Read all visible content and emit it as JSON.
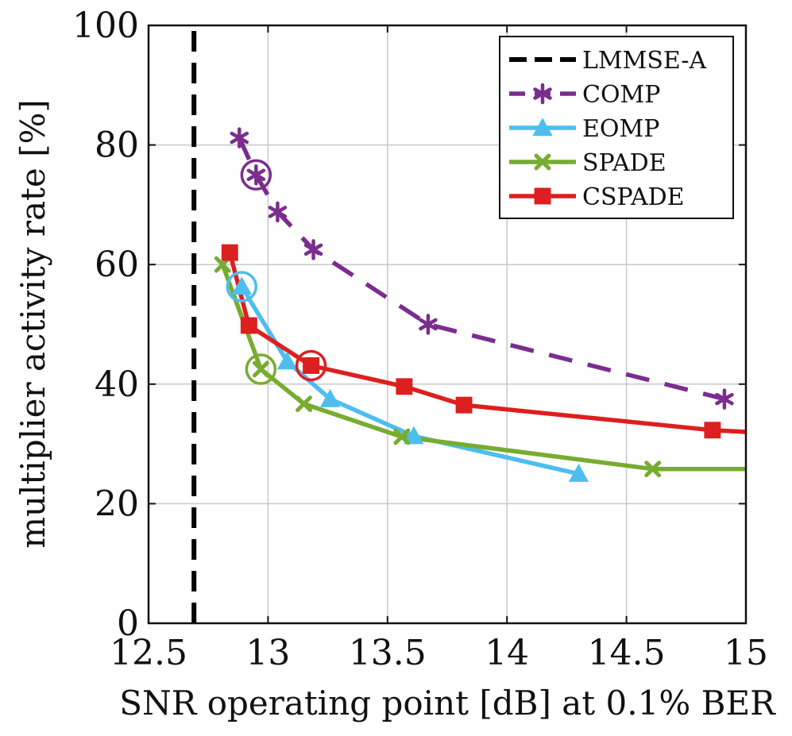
{
  "chart_data": {
    "type": "line",
    "xlabel": "SNR operating point [dB] at 0.1% BER",
    "ylabel": "multiplier activity rate [%]",
    "xlim": [
      12.5,
      15
    ],
    "ylim": [
      0,
      100
    ],
    "xticks": [
      "12.5",
      "13",
      "13.5",
      "14",
      "14.5",
      "15"
    ],
    "yticks": [
      "0",
      "20",
      "40",
      "60",
      "80",
      "100"
    ],
    "grid": true,
    "legend_position": "top-right",
    "series": [
      {
        "name": "LMMSE-A",
        "color": "#000000",
        "dash": "dashed",
        "marker": "none",
        "points": [
          [
            12.69,
            0
          ],
          [
            12.69,
            100
          ]
        ]
      },
      {
        "name": "COMP",
        "color": "#7B2D8E",
        "dash": "dashed",
        "marker": "star",
        "points": [
          [
            12.88,
            81.2
          ],
          [
            12.95,
            75.0
          ],
          [
            13.04,
            68.8
          ],
          [
            13.19,
            62.5
          ],
          [
            13.67,
            50.0
          ],
          [
            14.91,
            37.5
          ]
        ],
        "highlight": [
          12.95,
          75.0
        ]
      },
      {
        "name": "EOMP",
        "color": "#4DBEEE",
        "dash": "solid",
        "marker": "triangle",
        "points": [
          [
            12.89,
            56.3
          ],
          [
            13.08,
            43.8
          ],
          [
            13.26,
            37.5
          ],
          [
            13.61,
            31.3
          ],
          [
            14.3,
            25.0
          ]
        ],
        "highlight": [
          12.89,
          56.3
        ]
      },
      {
        "name": "SPADE",
        "color": "#77AC30",
        "dash": "solid",
        "marker": "x",
        "points": [
          [
            12.81,
            60.0
          ],
          [
            12.97,
            42.5
          ],
          [
            13.15,
            36.7
          ],
          [
            13.56,
            31.2
          ],
          [
            14.61,
            25.8
          ],
          [
            15.0,
            25.8
          ]
        ],
        "highlight": [
          12.97,
          42.5
        ]
      },
      {
        "name": "CSPADE",
        "color": "#DD1F1F",
        "dash": "solid",
        "marker": "square",
        "points": [
          [
            12.84,
            62.0
          ],
          [
            12.92,
            49.8
          ],
          [
            13.18,
            43.1
          ],
          [
            13.57,
            39.6
          ],
          [
            13.82,
            36.5
          ],
          [
            14.86,
            32.3
          ],
          [
            15.0,
            32.0
          ]
        ],
        "highlight": [
          13.18,
          43.1
        ]
      }
    ]
  }
}
